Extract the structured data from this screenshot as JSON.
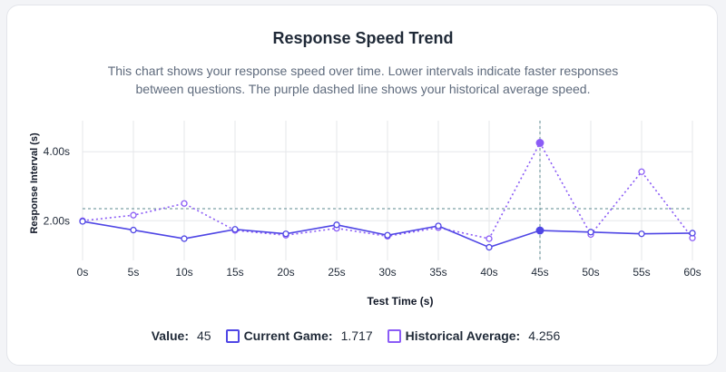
{
  "chart_data": {
    "type": "line",
    "title": "Response Speed Trend",
    "subtitle": "This chart shows your response speed over time. Lower intervals indicate faster responses between questions. The purple dashed line shows your historical average speed.",
    "xlabel": "Test Time (s)",
    "ylabel": "Response Interval (s)",
    "categories": [
      "0s",
      "5s",
      "10s",
      "15s",
      "20s",
      "25s",
      "30s",
      "35s",
      "40s",
      "45s",
      "50s",
      "55s",
      "60s"
    ],
    "x": [
      0,
      5,
      10,
      15,
      20,
      25,
      30,
      35,
      40,
      45,
      50,
      55,
      60
    ],
    "xlim": [
      0,
      60
    ],
    "ylim": [
      0.85,
      4.9
    ],
    "y_ticks": [
      2,
      4
    ],
    "y_tick_labels": [
      "2.00s",
      "4.00s"
    ],
    "grid": true,
    "series": [
      {
        "name": "Current Game",
        "color": "#4f46e5",
        "style": "solid",
        "values": [
          1.98,
          1.73,
          1.48,
          1.75,
          1.62,
          1.88,
          1.58,
          1.85,
          1.23,
          1.717,
          1.67,
          1.62,
          1.64
        ]
      },
      {
        "name": "Historical Average",
        "color": "#8b5cf6",
        "style": "dotted",
        "values": [
          2.0,
          2.16,
          2.5,
          1.72,
          1.58,
          1.78,
          1.55,
          1.8,
          1.48,
          4.256,
          1.6,
          3.42,
          1.5
        ]
      }
    ],
    "crosshair": {
      "x_value": 45,
      "y_value": 2.35,
      "color": "#5b8a8f"
    }
  },
  "legend": {
    "value_label": "Value:",
    "value": "45",
    "current_label": "Current Game:",
    "current_value": "1.717",
    "historical_label": "Historical Average:",
    "historical_value": "4.256"
  }
}
